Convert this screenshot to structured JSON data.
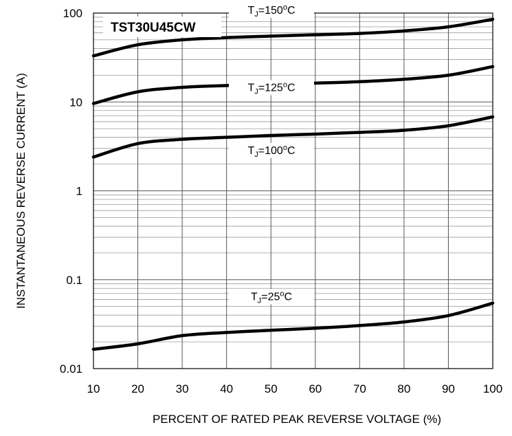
{
  "chart_data": {
    "type": "line",
    "title": "TST30U45CW",
    "xlabel": "PERCENT OF RATED PEAK REVERSE VOLTAGE (%)",
    "ylabel": "INSTANTANEOUS REVERSE CURRENT (A)",
    "xlim": [
      10,
      100
    ],
    "ylim": [
      0.01,
      100
    ],
    "yscale": "log",
    "grid": true,
    "x_ticks": [
      "10",
      "20",
      "30",
      "40",
      "50",
      "60",
      "70",
      "80",
      "90",
      "100"
    ],
    "y_ticks": [
      "0.01",
      "0.1",
      "1",
      "10",
      "100"
    ],
    "x": [
      10,
      20,
      30,
      40,
      50,
      60,
      70,
      80,
      90,
      100
    ],
    "series": [
      {
        "name": "TJ=150oC",
        "label_main": "T",
        "label_sub": "J",
        "label_mid": "=150",
        "label_sup": "o",
        "label_end": "C",
        "values": [
          33,
          44,
          50,
          53,
          55,
          57,
          59,
          63,
          70,
          85
        ]
      },
      {
        "name": "TJ=125oC",
        "label_main": "T",
        "label_sub": "J",
        "label_mid": "=125",
        "label_sup": "o",
        "label_end": "C",
        "values": [
          9.6,
          13,
          14.6,
          15.3,
          15.8,
          16.3,
          16.9,
          18,
          20,
          25
        ]
      },
      {
        "name": "TJ=100oC",
        "label_main": "T",
        "label_sub": "J",
        "label_mid": "=100",
        "label_sup": "o",
        "label_end": "C",
        "values": [
          2.4,
          3.4,
          3.8,
          4.0,
          4.2,
          4.35,
          4.55,
          4.8,
          5.4,
          6.8
        ]
      },
      {
        "name": "TJ=25oC",
        "label_main": "T",
        "label_sub": "J",
        "label_mid": "=25",
        "label_sup": "o",
        "label_end": "C",
        "values": [
          0.0165,
          0.019,
          0.0235,
          0.0255,
          0.027,
          0.0285,
          0.0305,
          0.0335,
          0.0395,
          0.0545
        ]
      }
    ]
  }
}
